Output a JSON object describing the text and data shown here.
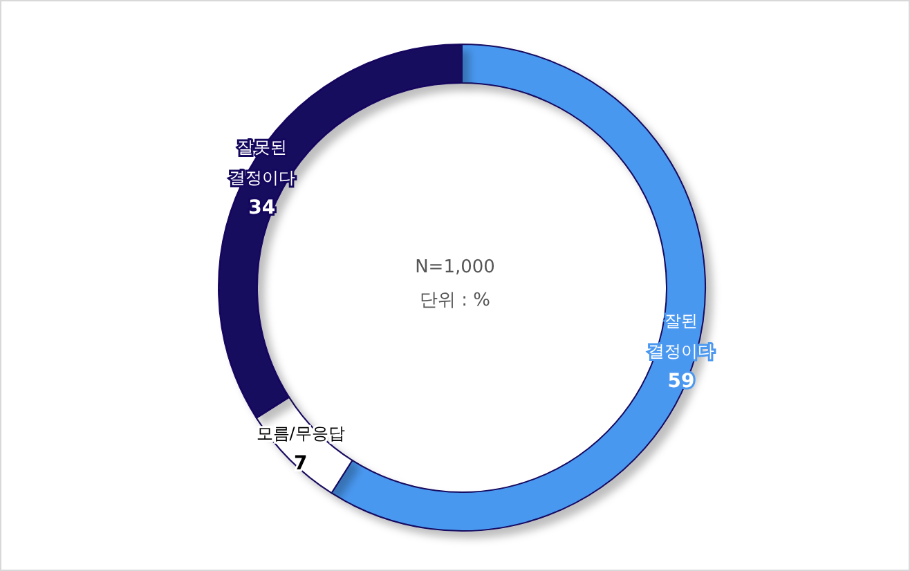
{
  "chart_data": {
    "type": "donut",
    "categories": [
      "잘된 결정이다",
      "모름/무응답",
      "잘못된 결정이다"
    ],
    "values": [
      59,
      7,
      34
    ],
    "colors": [
      "#4a98f0",
      "#ffffff",
      "#14075e"
    ],
    "data_labels": true,
    "legend": false,
    "annotations": [
      "N=1,000",
      "단위 : %"
    ]
  }
}
